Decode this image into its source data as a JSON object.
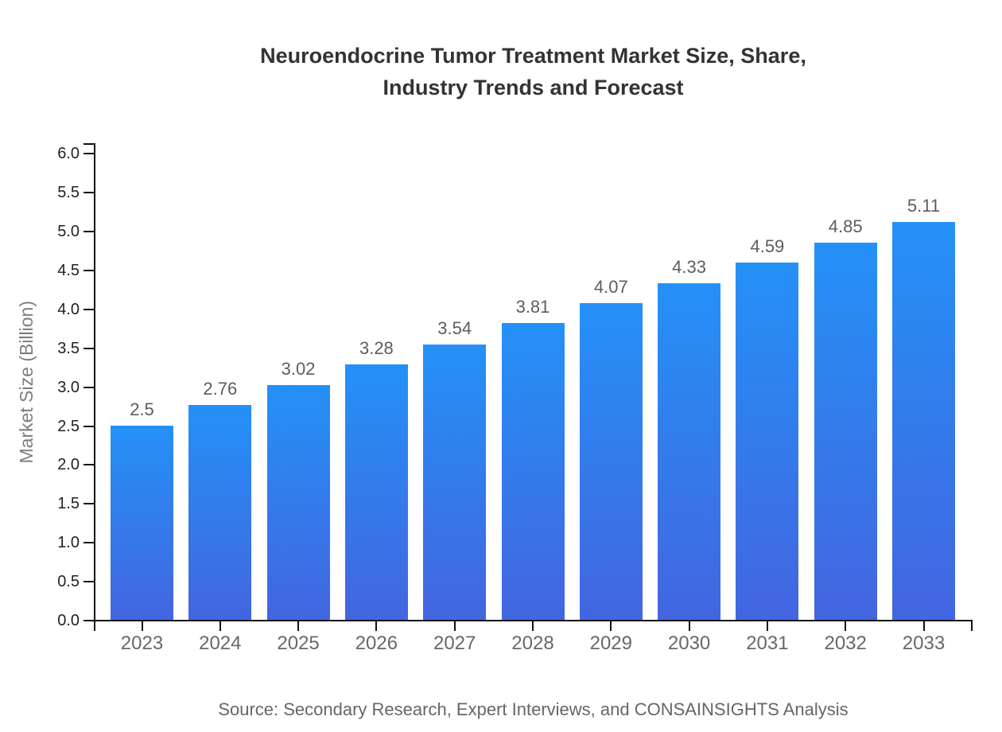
{
  "chart_data": {
    "type": "bar",
    "title": "Neuroendocrine Tumor Treatment Market Size, Share, Industry Trends and Forecast",
    "title_lines": [
      "Neuroendocrine Tumor Treatment Market Size, Share,",
      "Industry Trends and Forecast"
    ],
    "categories": [
      "2023",
      "2024",
      "2025",
      "2026",
      "2027",
      "2028",
      "2029",
      "2030",
      "2031",
      "2032",
      "2033"
    ],
    "values": [
      2.5,
      2.76,
      3.02,
      3.28,
      3.54,
      3.81,
      4.07,
      4.33,
      4.59,
      4.85,
      5.11
    ],
    "value_labels": [
      "2.5",
      "2.76",
      "3.02",
      "3.28",
      "3.54",
      "3.81",
      "4.07",
      "4.33",
      "4.59",
      "4.85",
      "5.11"
    ],
    "xlabel": "",
    "ylabel": "Market Size (Billion)",
    "ylim": [
      0.0,
      6.0
    ],
    "ytick_step": 0.5,
    "ytick_labels": [
      "0.0",
      "0.5",
      "1.0",
      "1.5",
      "2.0",
      "2.5",
      "3.0",
      "3.5",
      "4.0",
      "4.5",
      "5.0",
      "5.5",
      "6.0"
    ],
    "grid": false,
    "legend_position": "none",
    "colors": {
      "bar_gradient_top": "#2491f7",
      "bar_gradient_bottom": "#4365e0",
      "axis": "#111111"
    }
  },
  "footer": {
    "source": "Source: Secondary Research, Expert Interviews, and CONSAINSIGHTS Analysis"
  }
}
